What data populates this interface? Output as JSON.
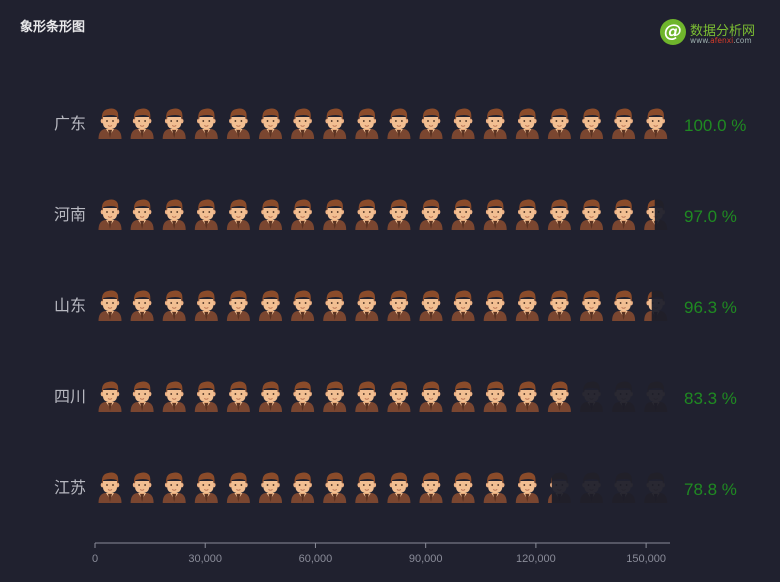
{
  "title": "象形条形图",
  "brand": {
    "name": "数据分析网",
    "url_prefix": "www.",
    "url_highlight": "afenxi",
    "url_suffix": ".com"
  },
  "colors": {
    "background": "#20212f",
    "value_label": "#1f8a22",
    "category_label": "#b7b8c0",
    "axis": "#8a8c99",
    "icon_filled": "#e8a25a",
    "icon_empty": "#2d2d36"
  },
  "chart_data": {
    "type": "pictorial-bar",
    "icon": "man-avatar-icon",
    "categories": [
      "广东",
      "河南",
      "山东",
      "四川",
      "江苏"
    ],
    "values": [
      100.0,
      97.0,
      96.3,
      83.3,
      78.8
    ],
    "value_labels": [
      "100.0 %",
      "97.0 %",
      "96.3 %",
      "83.3 %",
      "78.8 %"
    ],
    "x_ticks": [
      "0",
      "30,000",
      "60,000",
      "90,000",
      "120,000",
      "150,000"
    ],
    "icons_per_row": 18
  }
}
